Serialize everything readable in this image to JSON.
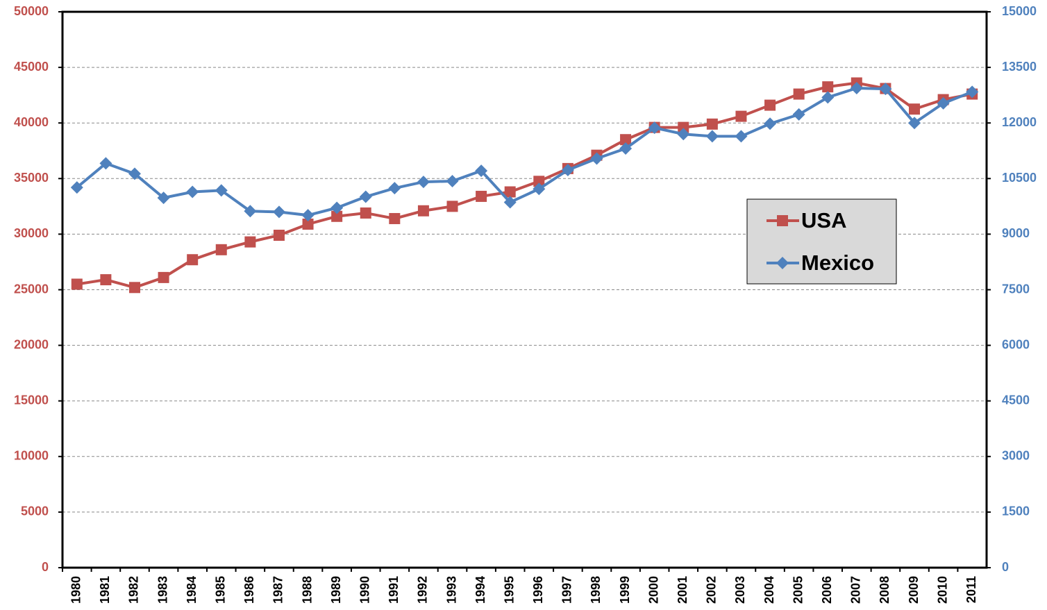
{
  "chart_data": {
    "type": "line",
    "categories": [
      "1980",
      "1981",
      "1982",
      "1983",
      "1984",
      "1985",
      "1986",
      "1987",
      "1988",
      "1989",
      "1990",
      "1991",
      "1992",
      "1993",
      "1994",
      "1995",
      "1996",
      "1997",
      "1998",
      "1999",
      "2000",
      "2001",
      "2002",
      "2003",
      "2004",
      "2005",
      "2006",
      "2007",
      "2008",
      "2009",
      "2010",
      "2011"
    ],
    "series": [
      {
        "name": "USA",
        "color": "#c0504d",
        "marker": "square",
        "axis": "y",
        "values": [
          25500,
          25900,
          25200,
          26100,
          27700,
          28600,
          29300,
          29900,
          30900,
          31600,
          31900,
          31400,
          32100,
          32500,
          33400,
          33800,
          34750,
          35900,
          37100,
          38500,
          39600,
          39600,
          39900,
          40600,
          41600,
          42600,
          43250,
          43600,
          43100,
          41250,
          42100,
          42600
        ]
      },
      {
        "name": "Mexico",
        "color": "#4f81bd",
        "marker": "diamond",
        "axis": "y2",
        "values": [
          10260,
          10910,
          10630,
          9980,
          10140,
          10180,
          9620,
          9600,
          9510,
          9710,
          10010,
          10240,
          10410,
          10430,
          10710,
          9860,
          10220,
          10730,
          11040,
          11310,
          11870,
          11700,
          11640,
          11640,
          11980,
          12230,
          12690,
          12940,
          12920,
          12000,
          12530,
          12840
        ]
      }
    ],
    "ylim": [
      0,
      50000
    ],
    "yticks": [
      0,
      5000,
      10000,
      15000,
      20000,
      25000,
      30000,
      35000,
      40000,
      45000,
      50000
    ],
    "y2lim": [
      0,
      15000
    ],
    "y2ticks": [
      0,
      1500,
      3000,
      4500,
      6000,
      7500,
      9000,
      10500,
      12000,
      13500,
      15000
    ],
    "grid": true,
    "legend": "right"
  }
}
